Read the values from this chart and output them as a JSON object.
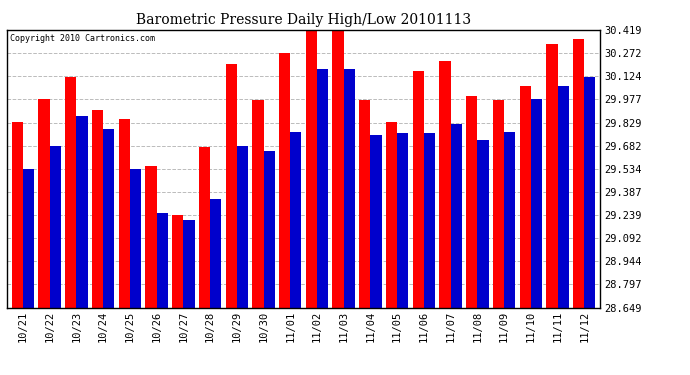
{
  "title": "Barometric Pressure Daily High/Low 20101113",
  "copyright": "Copyright 2010 Cartronics.com",
  "dates": [
    "10/21",
    "10/22",
    "10/23",
    "10/24",
    "10/25",
    "10/26",
    "10/27",
    "10/28",
    "10/29",
    "10/30",
    "11/01",
    "11/02",
    "11/03",
    "11/04",
    "11/05",
    "11/06",
    "11/07",
    "11/08",
    "11/09",
    "11/10",
    "11/11",
    "11/12"
  ],
  "highs": [
    29.83,
    29.98,
    30.12,
    29.91,
    29.85,
    29.55,
    29.24,
    29.67,
    30.2,
    29.97,
    30.27,
    30.42,
    30.42,
    29.97,
    29.83,
    30.16,
    30.22,
    30.0,
    29.97,
    30.06,
    30.33,
    30.36
  ],
  "lows": [
    29.53,
    29.68,
    29.87,
    29.79,
    29.53,
    29.25,
    29.21,
    29.34,
    29.68,
    29.65,
    29.77,
    30.17,
    30.17,
    29.75,
    29.76,
    29.76,
    29.82,
    29.72,
    29.77,
    29.98,
    30.06,
    30.12
  ],
  "high_color": "#ff0000",
  "low_color": "#0000cc",
  "bg_color": "#ffffff",
  "grid_color": "#bbbbbb",
  "yticks": [
    28.649,
    28.797,
    28.944,
    29.092,
    29.239,
    29.387,
    29.534,
    29.682,
    29.829,
    29.977,
    30.124,
    30.272,
    30.419
  ],
  "ymin": 28.649,
  "ymax": 30.419,
  "bar_width": 0.42
}
